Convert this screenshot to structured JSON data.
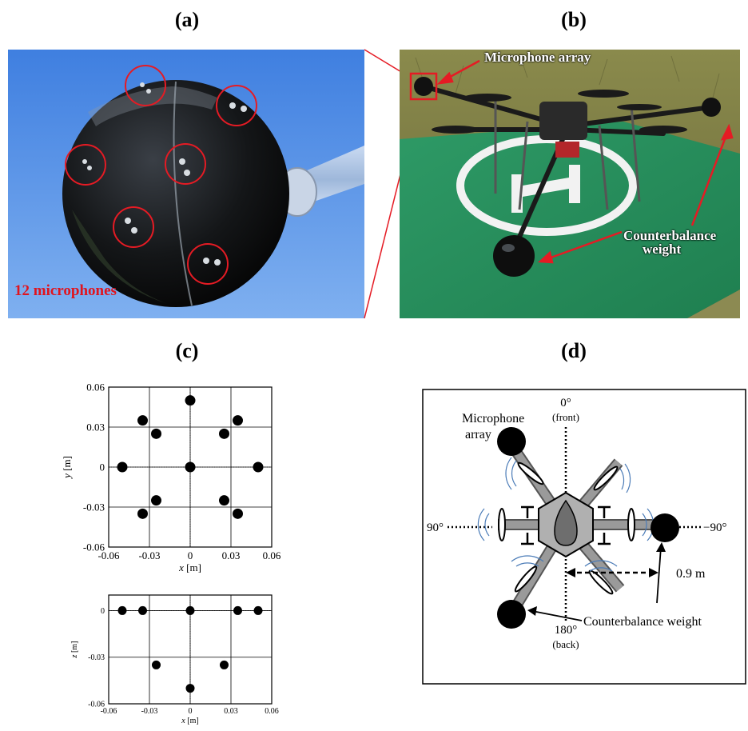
{
  "panels": {
    "a": {
      "label": "(a)",
      "caption": "12 microphones"
    },
    "b": {
      "label": "(b)",
      "mic_label": "Microphone array",
      "weight_label_1": "Counterbalance",
      "weight_label_2": "weight"
    },
    "c": {
      "label": "(c)"
    },
    "d": {
      "label": "(d)",
      "front": "0°",
      "front_sub": "(front)",
      "back": "180°",
      "back_sub": "(back)",
      "left": "90°",
      "right": "−90°",
      "mic_1": "Microphone",
      "mic_2": "array",
      "distance": "0.9 m",
      "weight": "Counterbalance weight"
    }
  },
  "chart_data": [
    {
      "type": "scatter",
      "xlabel_var": "x",
      "xlabel_unit": "[m]",
      "ylabel_var": "y",
      "ylabel_unit": "[m]",
      "xlim": [
        -0.06,
        0.06
      ],
      "ylim": [
        -0.06,
        0.06
      ],
      "xticks": [
        "-0.06",
        "-0.03",
        "0",
        "0.03",
        "0.06"
      ],
      "yticks": [
        "-0.06",
        "-0.03",
        "0",
        "0.03",
        "0.06"
      ],
      "grid": true,
      "points": [
        [
          0,
          0.05
        ],
        [
          -0.035,
          0.035
        ],
        [
          0.035,
          0.035
        ],
        [
          -0.025,
          0.025
        ],
        [
          0.025,
          0.025
        ],
        [
          -0.05,
          0
        ],
        [
          0,
          0
        ],
        [
          0.05,
          0
        ],
        [
          -0.025,
          -0.025
        ],
        [
          0.025,
          -0.025
        ],
        [
          -0.035,
          -0.035
        ],
        [
          0.035,
          -0.035
        ]
      ]
    },
    {
      "type": "scatter",
      "xlabel_var": "x",
      "xlabel_unit": "[m]",
      "ylabel_var": "z",
      "ylabel_unit": "[m]",
      "xlim": [
        -0.06,
        0.06
      ],
      "ylim": [
        -0.06,
        0.01
      ],
      "xticks": [
        "-0.06",
        "-0.03",
        "0",
        "0.03",
        "0.06"
      ],
      "yticks": [
        "-0.06",
        "-0.03",
        "0"
      ],
      "grid": true,
      "points": [
        [
          -0.05,
          0
        ],
        [
          -0.035,
          0
        ],
        [
          0,
          0
        ],
        [
          0.035,
          0
        ],
        [
          0.05,
          0
        ],
        [
          -0.025,
          -0.035
        ],
        [
          0.025,
          -0.035
        ],
        [
          0,
          -0.05
        ]
      ]
    }
  ]
}
